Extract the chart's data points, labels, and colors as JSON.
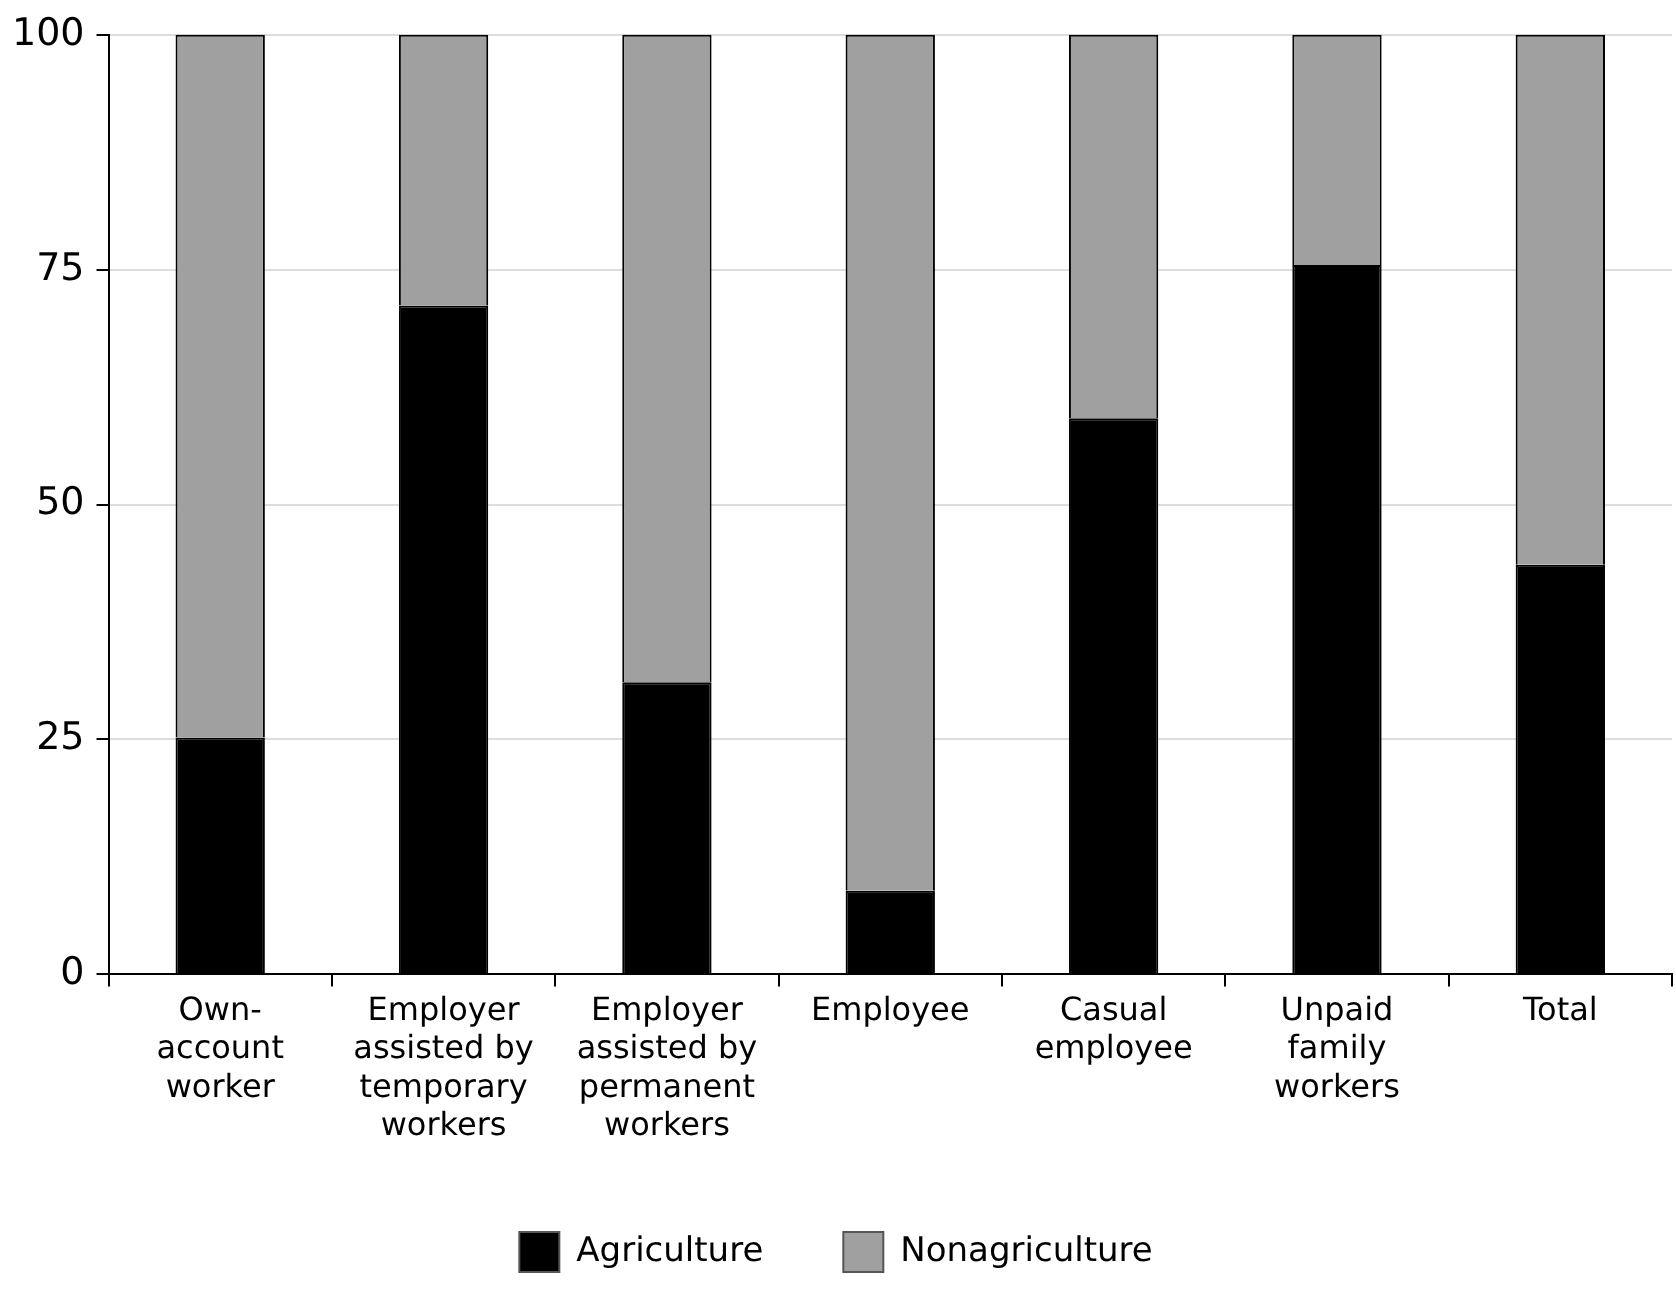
{
  "chart_data": {
    "type": "bar",
    "stacked": true,
    "categories": [
      "Own-account worker",
      "Employer assisted by temporary workers",
      "Employer assisted by permanent workers",
      "Employee",
      "Casual employee",
      "Unpaid family workers",
      "Total"
    ],
    "series": [
      {
        "name": "Agriculture",
        "color": "#000000",
        "values": [
          25.2,
          71.2,
          31.1,
          8.9,
          59.2,
          75.5,
          43.6
        ]
      },
      {
        "name": "Nonagriculture",
        "color": "#a0a0a0",
        "values": [
          74.8,
          28.8,
          68.9,
          91.1,
          40.8,
          24.5,
          56.4
        ]
      }
    ],
    "ylim": [
      0,
      100
    ],
    "yticks": [
      0,
      25,
      50,
      75,
      100
    ],
    "grid": "y",
    "legend": "bottom"
  }
}
